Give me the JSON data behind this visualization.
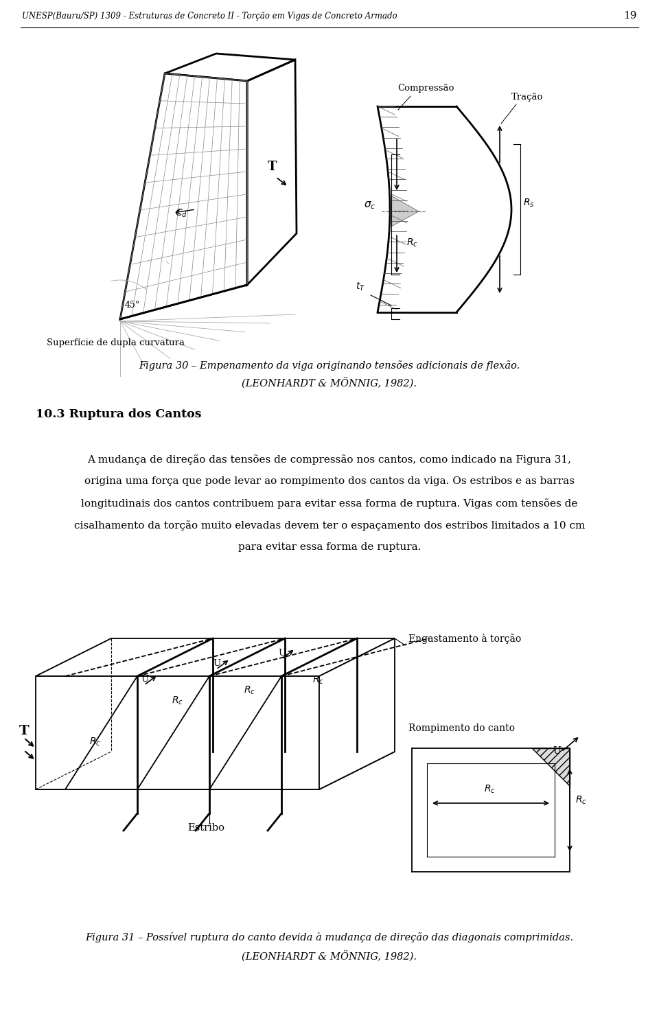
{
  "header_text": "UNESP(Bauru/SP) 1309 - Estruturas de Concreto II - Torção em Vigas de Concreto Armado",
  "header_page": "19",
  "fig30_caption_line1": "Figura 30 – Empenamento da viga originando tensões adicionais de flexão.",
  "fig30_caption_line2": "(LEONHARDT & MÖNNIG, 1982).",
  "section_title": "10.3 Ruptura dos Cantos",
  "para1": "A mudança de direção das tensões de compressão nos cantos, como indicado na Figura 31,",
  "para2": "origina uma força que pode levar ao rompimento dos cantos da viga. Os estribos e as barras",
  "para3": "longitudinais dos cantos contribuem para evitar essa forma de ruptura. Vigas com tensões de",
  "para4": "cisalhamento da torção muito elevadas devem ter o espaçamento dos estribos limitados a 10 cm",
  "para5": "para evitar essa forma de ruptura.",
  "fig31_caption_line1": "Figura 31 – Possível ruptura do canto devida à mudança de direção das diagonais comprimidas.",
  "fig31_caption_line2": "(LEONHARDT & MÖNNIG, 1982).",
  "bg_color": "#ffffff"
}
